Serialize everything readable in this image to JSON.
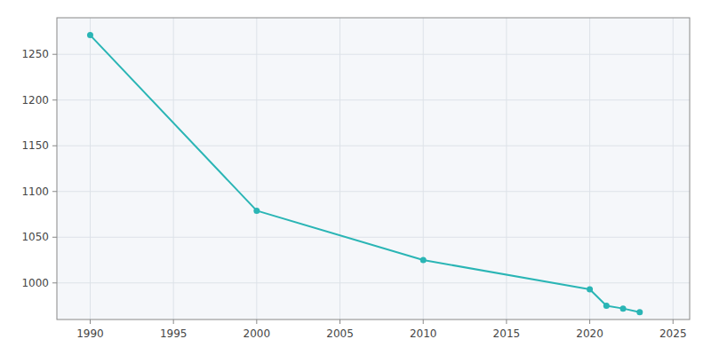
{
  "chart_data": {
    "type": "line",
    "x": [
      1990,
      2000,
      2010,
      2020,
      2021,
      2022,
      2023
    ],
    "values": [
      1271,
      1079,
      1025,
      993,
      975,
      972,
      968
    ],
    "color": "#2ab5b5",
    "marker": "circle",
    "xlim": [
      1988,
      2026
    ],
    "ylim": [
      960,
      1290
    ],
    "xticks": [
      1990,
      1995,
      2000,
      2005,
      2010,
      2015,
      2020,
      2025
    ],
    "yticks": [
      1000,
      1050,
      1100,
      1150,
      1200,
      1250
    ],
    "grid": true
  }
}
